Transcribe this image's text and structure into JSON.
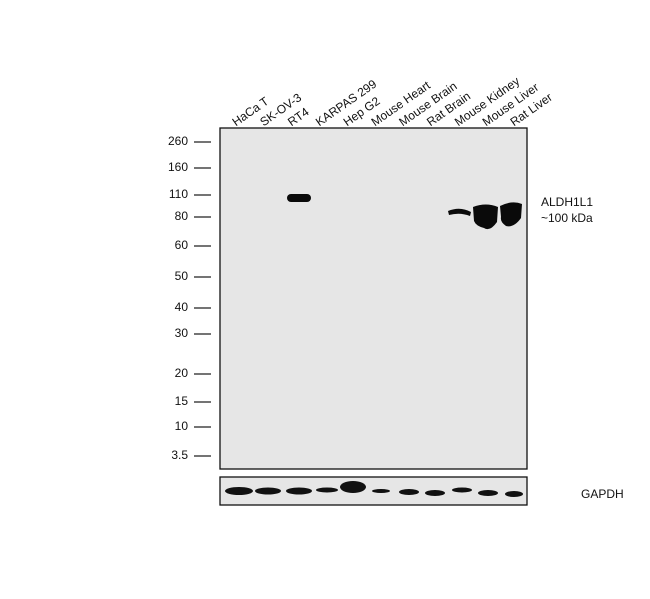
{
  "lanes": [
    "HaCa T",
    "SK-OV-3",
    "RT4",
    "KARPAS 299",
    "Hep G2",
    "Mouse Heart",
    "Mouse Brain",
    "Rat Brain",
    "Mouse Kidney",
    "Mouse Liver",
    "Rat Liver"
  ],
  "markers": [
    "260",
    "160",
    "110",
    "80",
    "60",
    "50",
    "40",
    "30",
    "20",
    "15",
    "10",
    "3.5"
  ],
  "target": {
    "name": "ALDH1L1",
    "size": "~100 kDa"
  },
  "loading_control": "GAPDH"
}
